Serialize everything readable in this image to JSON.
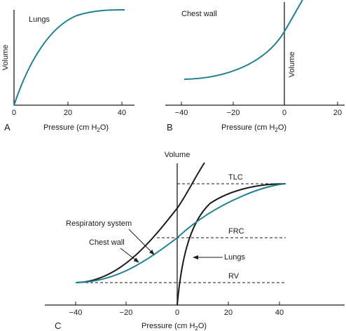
{
  "colors": {
    "accent": "#1f7f93",
    "ink": "#1a1a1a"
  },
  "panel_a": {
    "letter": "A",
    "title": "Lungs",
    "ylabel": "Volume",
    "xlabel_main": "Pressure (cm H",
    "xlabel_sub": "2",
    "xlabel_end": "O)",
    "xticks": [
      "0",
      "20",
      "40"
    ]
  },
  "panel_b": {
    "letter": "B",
    "title": "Chest wall",
    "ylabel": "Volume",
    "xlabel_main": "Pressure (cm H",
    "xlabel_sub": "2",
    "xlabel_end": "O)",
    "xticks": [
      "−40",
      "−20",
      "0",
      "20"
    ]
  },
  "panel_c": {
    "letter": "C",
    "ylabel": "Volume",
    "xlabel_main": "Pressure (cm H",
    "xlabel_sub": "2",
    "xlabel_end": "O)",
    "xticks": [
      "−40",
      "−20",
      "0",
      "20",
      "40"
    ],
    "levels": {
      "tlc": "TLC",
      "frc": "FRC",
      "rv": "RV"
    },
    "annotations": {
      "respiratory_system": "Respiratory system",
      "chest_wall": "Chest wall",
      "lungs": "Lungs"
    }
  }
}
